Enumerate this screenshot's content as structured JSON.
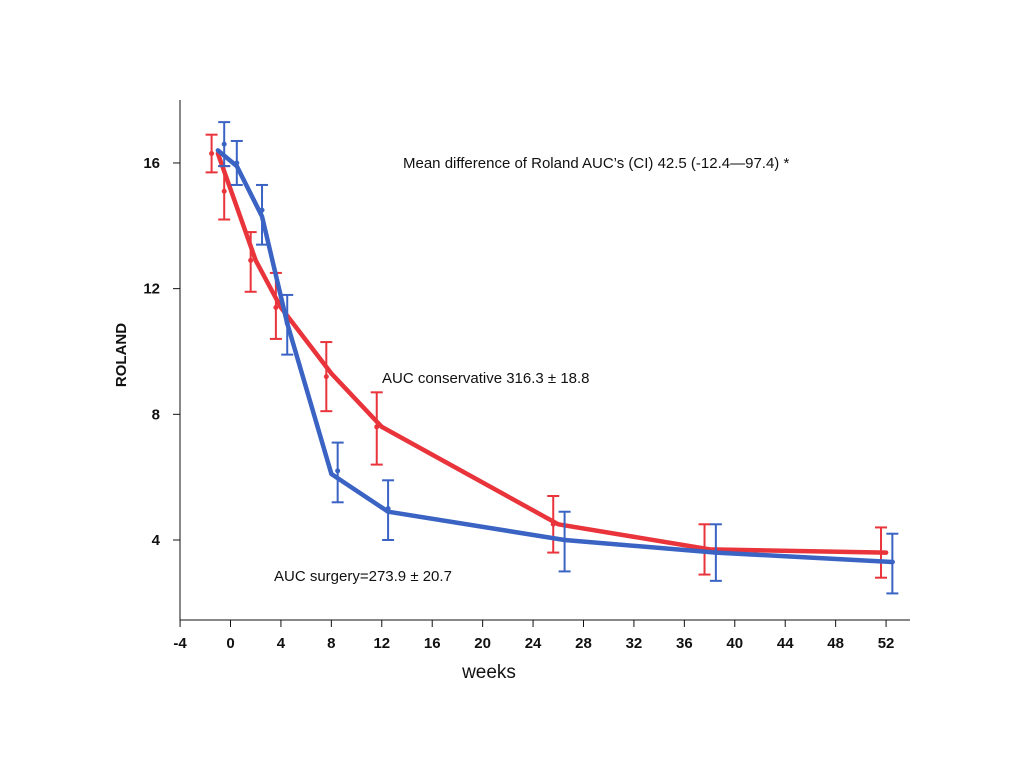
{
  "chart_data": {
    "type": "line",
    "xlabel": "weeks",
    "ylabel": "ROLAND",
    "xlim": [
      -4,
      54
    ],
    "ylim": [
      1.5,
      18
    ],
    "x_ticks": [
      -4,
      0,
      4,
      8,
      12,
      16,
      20,
      24,
      28,
      32,
      36,
      40,
      44,
      48,
      52
    ],
    "y_ticks": [
      4,
      8,
      12,
      16
    ],
    "grid": false,
    "annotations": [
      "Mean difference of Roland AUC’s (CI)    42.5 (-12.4—97.4) *",
      "AUC conservative 316.3 ± 18.8",
      "AUC surgery=273.9 ± 20.7"
    ],
    "series": [
      {
        "color": "#e8343a",
        "x": [
          -1,
          2,
          4,
          8,
          12,
          26,
          38,
          52
        ],
        "y": [
          16.3,
          12.9,
          11.4,
          9.3,
          7.6,
          4.5,
          3.7,
          3.6
        ],
        "points": [
          {
            "x": -1.5,
            "y": 16.3,
            "lo": 15.7,
            "hi": 16.9
          },
          {
            "x": -0.5,
            "y": 15.1,
            "lo": 14.2,
            "hi": 15.9
          },
          {
            "x": 1.6,
            "y": 12.9,
            "lo": 11.9,
            "hi": 13.8
          },
          {
            "x": 3.6,
            "y": 11.4,
            "lo": 10.4,
            "hi": 12.5
          },
          {
            "x": 7.6,
            "y": 9.2,
            "lo": 8.1,
            "hi": 10.3
          },
          {
            "x": 11.6,
            "y": 7.6,
            "lo": 6.4,
            "hi": 8.7
          },
          {
            "x": 25.6,
            "y": 4.5,
            "lo": 3.6,
            "hi": 5.4
          },
          {
            "x": 37.6,
            "y": 3.7,
            "lo": 2.9,
            "hi": 4.5
          },
          {
            "x": 51.6,
            "y": 3.6,
            "lo": 2.8,
            "hi": 4.4
          }
        ]
      },
      {
        "color": "#3a63c4",
        "x": [
          -1,
          0.5,
          2.5,
          4.5,
          8,
          12.5,
          26.5,
          38.5,
          52.5
        ],
        "y": [
          16.4,
          15.9,
          14.3,
          10.9,
          6.1,
          4.9,
          4.0,
          3.6,
          3.3
        ],
        "points": [
          {
            "x": -0.5,
            "y": 16.6,
            "lo": 15.9,
            "hi": 17.3
          },
          {
            "x": 0.5,
            "y": 16.0,
            "lo": 15.3,
            "hi": 16.7
          },
          {
            "x": 2.5,
            "y": 14.5,
            "lo": 13.4,
            "hi": 15.3
          },
          {
            "x": 4.5,
            "y": 10.9,
            "lo": 9.9,
            "hi": 11.8
          },
          {
            "x": 8.5,
            "y": 6.2,
            "lo": 5.2,
            "hi": 7.1
          },
          {
            "x": 12.5,
            "y": 5.0,
            "lo": 4.0,
            "hi": 5.9
          },
          {
            "x": 26.5,
            "y": 4.0,
            "lo": 3.0,
            "hi": 4.9
          },
          {
            "x": 38.5,
            "y": 3.6,
            "lo": 2.7,
            "hi": 4.5
          },
          {
            "x": 52.5,
            "y": 3.3,
            "lo": 2.3,
            "hi": 4.2
          }
        ]
      }
    ]
  }
}
